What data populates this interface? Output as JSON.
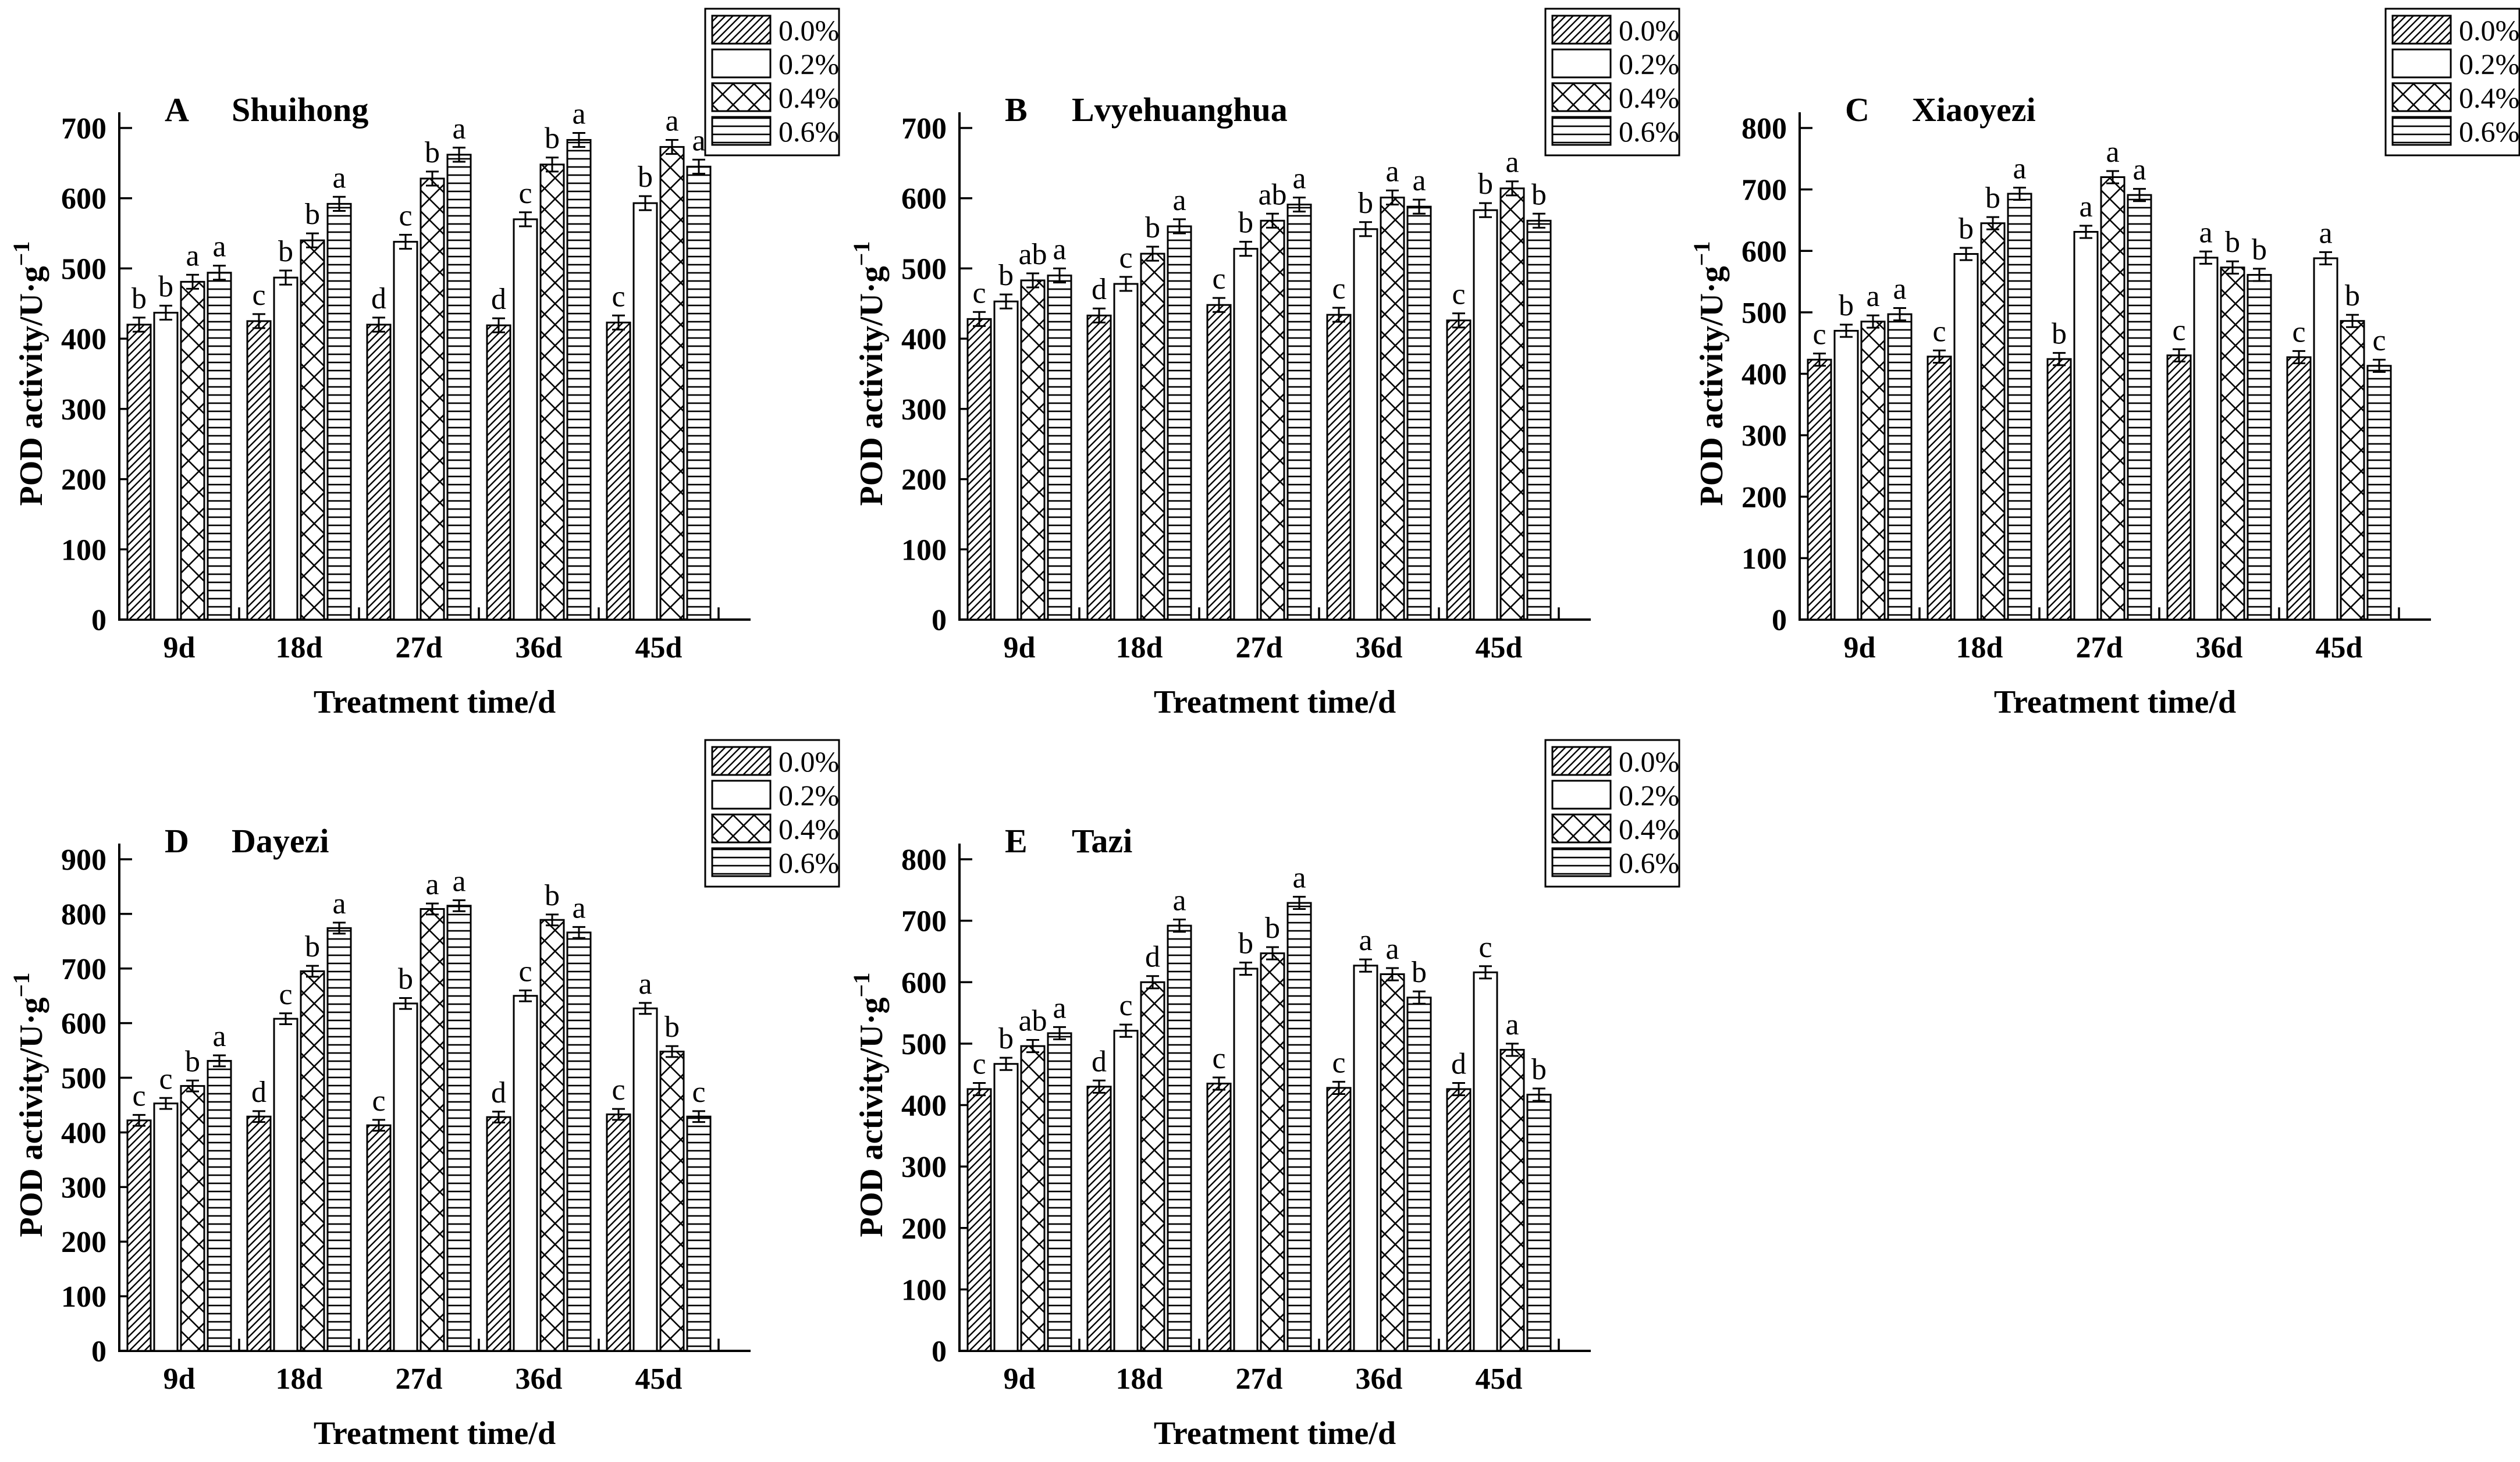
{
  "figure": {
    "background_color": "#ffffff",
    "ink_color": "#000000"
  },
  "legend": {
    "labels": [
      "0.0%",
      "0.2%",
      "0.4%",
      "0.6%"
    ],
    "swatch_patterns": [
      "diagonal-hatch",
      "plain-white",
      "crosshatch",
      "horizontal-lines"
    ],
    "position": "top-right"
  },
  "chart_data": {
    "type": "bar",
    "categories": [
      "9d",
      "18d",
      "27d",
      "36d",
      "45d"
    ],
    "xlabel": "Treatment time/d",
    "ylabel": "POD activity/U·g⁻¹",
    "ylabel_parts": {
      "base": "POD activity/U·g",
      "sup": "−1"
    },
    "series_labels": [
      "0.0%",
      "0.2%",
      "0.4%",
      "0.6%"
    ],
    "grid": false,
    "legend_position": "top-right",
    "error_bar_estimate": 10,
    "panels": [
      {
        "key": "A",
        "title": "Shuihong",
        "ylim": [
          0,
          700
        ],
        "ytick_step": 100,
        "series": [
          {
            "name": "0.0%",
            "values": [
              420,
              425,
              420,
              419,
              423
            ],
            "letters": [
              "b",
              "c",
              "d",
              "d",
              "c"
            ]
          },
          {
            "name": "0.2%",
            "values": [
              437,
              487,
              538,
              570,
              593
            ],
            "letters": [
              "b",
              "b",
              "c",
              "c",
              "b"
            ]
          },
          {
            "name": "0.4%",
            "values": [
              481,
              540,
              628,
              648,
              673
            ],
            "letters": [
              "a",
              "b",
              "b",
              "b",
              "a"
            ]
          },
          {
            "name": "0.6%",
            "values": [
              494,
              592,
              662,
              683,
              645
            ],
            "letters": [
              "a",
              "a",
              "a",
              "a",
              "a"
            ]
          }
        ]
      },
      {
        "key": "B",
        "title": "Lvyehuanghua",
        "ylim": [
          0,
          700
        ],
        "ytick_step": 100,
        "series": [
          {
            "name": "0.0%",
            "values": [
              428,
              433,
              448,
              434,
              426
            ],
            "letters": [
              "c",
              "d",
              "c",
              "c",
              "c"
            ]
          },
          {
            "name": "0.2%",
            "values": [
              453,
              478,
              528,
              556,
              583
            ],
            "letters": [
              "b",
              "c",
              "b",
              "b",
              "b"
            ]
          },
          {
            "name": "0.4%",
            "values": [
              483,
              521,
              568,
              601,
              614
            ],
            "letters": [
              "ab",
              "b",
              "ab",
              "a",
              "a"
            ]
          },
          {
            "name": "0.6%",
            "values": [
              490,
              560,
              591,
              588,
              568
            ],
            "letters": [
              "a",
              "a",
              "a",
              "a",
              "b"
            ]
          }
        ]
      },
      {
        "key": "C",
        "title": "Xiaoyezi",
        "ylim": [
          0,
          800
        ],
        "ytick_step": 100,
        "series": [
          {
            "name": "0.0%",
            "values": [
              423,
              428,
              424,
              430,
              427
            ],
            "letters": [
              "c",
              "c",
              "b",
              "c",
              "c"
            ]
          },
          {
            "name": "0.2%",
            "values": [
              470,
              595,
              631,
              589,
              588
            ],
            "letters": [
              "b",
              "b",
              "a",
              "a",
              "a"
            ]
          },
          {
            "name": "0.4%",
            "values": [
              485,
              645,
              720,
              573,
              486
            ],
            "letters": [
              "a",
              "b",
              "a",
              "b",
              "b"
            ]
          },
          {
            "name": "0.6%",
            "values": [
              497,
              693,
              691,
              561,
              413
            ],
            "letters": [
              "a",
              "a",
              "a",
              "b",
              "c"
            ]
          }
        ]
      },
      {
        "key": "D",
        "title": "Dayezi",
        "ylim": [
          0,
          900
        ],
        "ytick_step": 100,
        "series": [
          {
            "name": "0.0%",
            "values": [
              422,
              429,
              413,
              428,
              433
            ],
            "letters": [
              "c",
              "d",
              "c",
              "d",
              "c"
            ]
          },
          {
            "name": "0.2%",
            "values": [
              453,
              608,
              636,
              650,
              627
            ],
            "letters": [
              "c",
              "c",
              "b",
              "c",
              "a"
            ]
          },
          {
            "name": "0.4%",
            "values": [
              485,
              695,
              809,
              789,
              548
            ],
            "letters": [
              "b",
              "b",
              "a",
              "b",
              "b"
            ]
          },
          {
            "name": "0.6%",
            "values": [
              531,
              774,
              815,
              766,
              429
            ],
            "letters": [
              "a",
              "a",
              "a",
              "a",
              "c"
            ]
          }
        ]
      },
      {
        "key": "E",
        "title": "Tazi",
        "ylim": [
          0,
          800
        ],
        "ytick_step": 100,
        "series": [
          {
            "name": "0.0%",
            "values": [
              426,
              430,
              435,
              428,
              426
            ],
            "letters": [
              "c",
              "d",
              "c",
              "c",
              "d"
            ]
          },
          {
            "name": "0.2%",
            "values": [
              467,
              521,
              622,
              627,
              616
            ],
            "letters": [
              "b",
              "c",
              "b",
              "a",
              "c"
            ]
          },
          {
            "name": "0.4%",
            "values": [
              496,
              600,
              647,
              613,
              490
            ],
            "letters": [
              "ab",
              "d",
              "b",
              "a",
              "a"
            ]
          },
          {
            "name": "0.6%",
            "values": [
              517,
              692,
              729,
              575,
              417
            ],
            "letters": [
              "a",
              "a",
              "a",
              "b",
              "b"
            ]
          }
        ]
      }
    ]
  }
}
